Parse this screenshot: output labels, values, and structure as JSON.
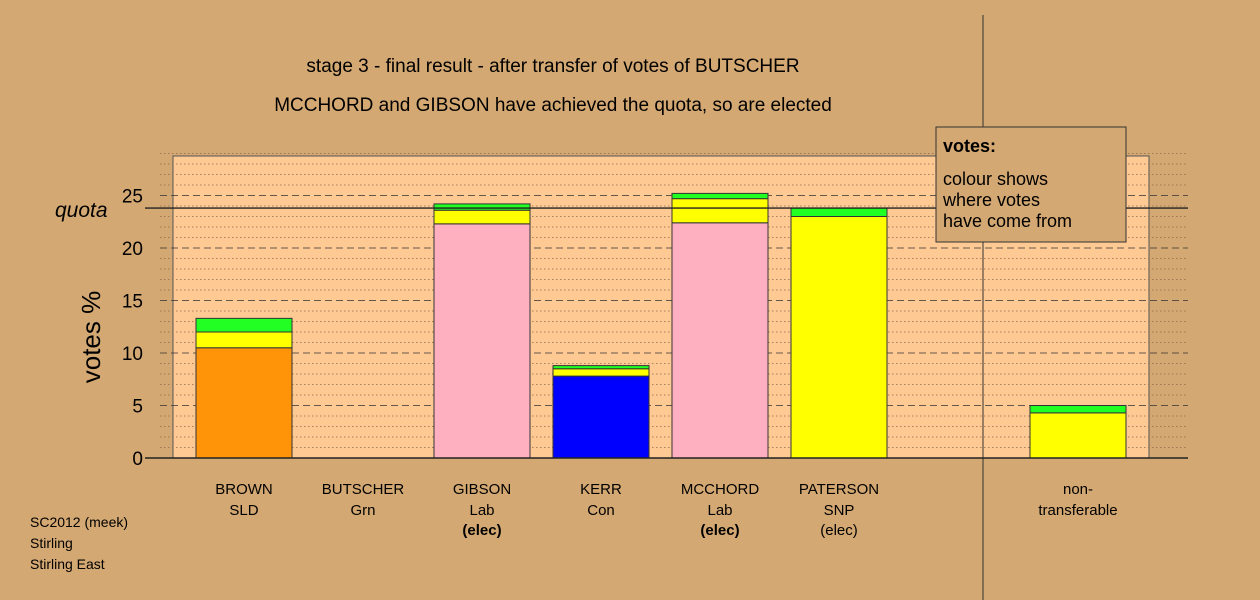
{
  "chart_data": {
    "type": "bar",
    "stacked": true,
    "title": "stage 3 - final result - after transfer of votes of BUTSCHER",
    "subtitle": "MCCHORD and GIBSON have achieved the quota, so are elected",
    "ylabel": "votes %",
    "ylim": [
      0,
      29
    ],
    "yticks": [
      0,
      5,
      10,
      15,
      20,
      25
    ],
    "quota": 23.8,
    "quota_label": "quota",
    "candidates": [
      {
        "name": "BROWN",
        "party": "SLD",
        "elected": "",
        "segments": [
          {
            "value": 10.5,
            "color": "#ff9408"
          },
          {
            "value": 1.5,
            "color": "#ffff00"
          },
          {
            "value": 1.3,
            "color": "#22ff22"
          }
        ]
      },
      {
        "name": "BUTSCHER",
        "party": "Grn",
        "elected": "",
        "segments": []
      },
      {
        "name": "GIBSON",
        "party": "Lab",
        "elected": "(elec)",
        "elected_bold": true,
        "segments": [
          {
            "value": 22.3,
            "color": "#ffb0c0"
          },
          {
            "value": 1.3,
            "color": "#ffff00"
          },
          {
            "value": 0.6,
            "color": "#22ff22"
          }
        ]
      },
      {
        "name": "KERR",
        "party": "Con",
        "elected": "",
        "segments": [
          {
            "value": 7.8,
            "color": "#0000ff"
          },
          {
            "value": 0.7,
            "color": "#ffff00"
          },
          {
            "value": 0.3,
            "color": "#22ff22"
          }
        ]
      },
      {
        "name": "MCCHORD",
        "party": "Lab",
        "elected": "(elec)",
        "elected_bold": true,
        "segments": [
          {
            "value": 22.4,
            "color": "#ffb0c0"
          },
          {
            "value": 2.3,
            "color": "#ffff00"
          },
          {
            "value": 0.5,
            "color": "#22ff22"
          }
        ]
      },
      {
        "name": "PATERSON",
        "party": "SNP",
        "elected": "(elec)",
        "elected_bold": false,
        "segments": [
          {
            "value": 23.0,
            "color": "#ffff00"
          },
          {
            "value": 0.8,
            "color": "#22ff22"
          }
        ]
      }
    ],
    "nontransferable": {
      "label_line1": "non-",
      "label_line2": "transferable",
      "segments": [
        {
          "value": 4.3,
          "color": "#ffff00"
        },
        {
          "value": 0.7,
          "color": "#22ff22"
        }
      ]
    },
    "legend": {
      "title": "votes:",
      "lines": [
        "colour shows",
        "where votes",
        "have come from"
      ]
    },
    "footer": [
      "SC2012 (meek)",
      "Stirling",
      "Stirling East"
    ],
    "colors": {
      "background": "#d4a872",
      "plot_background": "#ffc994"
    }
  }
}
